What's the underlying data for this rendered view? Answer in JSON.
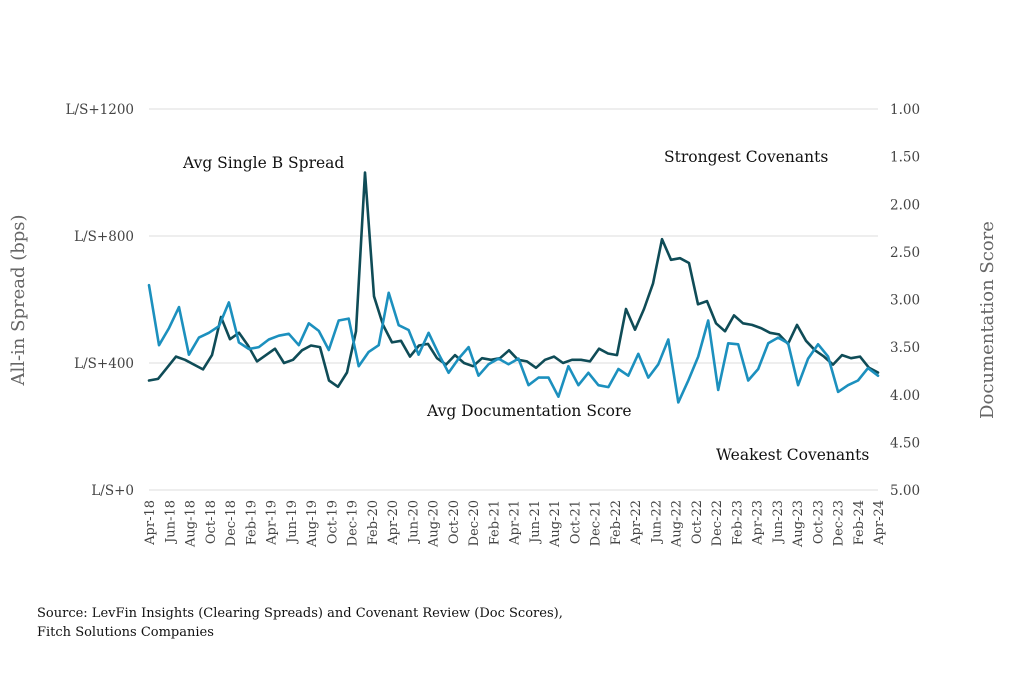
{
  "chart_data": {
    "type": "line",
    "y_left": {
      "label": "All-in Spread (bps)",
      "ticks": [
        "L/S+0",
        "L/S+400",
        "L/S+800",
        "L/S+1200"
      ],
      "range": [
        0,
        1200
      ]
    },
    "y_right": {
      "label": "Documentation Score",
      "ticks": [
        "1.00",
        "1.50",
        "2.00",
        "2.50",
        "3.00",
        "3.50",
        "4.00",
        "4.50",
        "5.00"
      ],
      "range": [
        1.0,
        5.0
      ],
      "inverted": true
    },
    "x_tick_labels": [
      "Apr-18",
      "Jun-18",
      "Aug-18",
      "Oct-18",
      "Dec-18",
      "Feb-19",
      "Apr-19",
      "Jun-19",
      "Aug-19",
      "Oct-19",
      "Dec-19",
      "Feb-20",
      "Apr-20",
      "Jun-20",
      "Aug-20",
      "Oct-20",
      "Dec-20",
      "Feb-21",
      "Apr-21",
      "Jun-21",
      "Aug-21",
      "Oct-21",
      "Dec-21",
      "Feb-22",
      "Apr-22",
      "Jun-22",
      "Aug-22",
      "Oct-22",
      "Dec-22",
      "Feb-23",
      "Apr-23",
      "Jun-23",
      "Aug-23",
      "Oct-23",
      "Dec-23",
      "Feb-24",
      "Apr-24"
    ],
    "x_start": "Apr-18",
    "x_end": "May-24",
    "series": [
      {
        "name": "Avg Single B Spread",
        "axis": "left",
        "color": "#0f4c57",
        "values": [
          345,
          350,
          385,
          420,
          410,
          395,
          380,
          425,
          545,
          475,
          495,
          455,
          405,
          425,
          445,
          400,
          410,
          440,
          455,
          450,
          345,
          325,
          370,
          500,
          1000,
          610,
          520,
          465,
          470,
          420,
          455,
          460,
          415,
          395,
          425,
          400,
          390,
          415,
          410,
          415,
          440,
          410,
          405,
          385,
          410,
          420,
          400,
          410,
          410,
          405,
          445,
          430,
          425,
          570,
          505,
          570,
          650,
          790,
          725,
          730,
          715,
          585,
          595,
          525,
          500,
          550,
          525,
          520,
          510,
          495,
          490,
          460,
          520,
          470,
          440,
          420,
          395,
          425,
          415,
          420,
          385,
          370
        ]
      },
      {
        "name": "Avg Documentation Score",
        "axis": "right",
        "color": "#1c90be",
        "values": [
          2.85,
          3.48,
          3.3,
          3.08,
          3.58,
          3.4,
          3.35,
          3.28,
          3.03,
          3.45,
          3.52,
          3.5,
          3.42,
          3.38,
          3.36,
          3.48,
          3.25,
          3.33,
          3.53,
          3.22,
          3.2,
          3.7,
          3.55,
          3.48,
          2.93,
          3.27,
          3.32,
          3.58,
          3.35,
          3.57,
          3.77,
          3.62,
          3.5,
          3.8,
          3.68,
          3.62,
          3.68,
          3.62,
          3.9,
          3.82,
          3.82,
          4.02,
          3.7,
          3.9,
          3.77,
          3.9,
          3.92,
          3.73,
          3.8,
          3.57,
          3.82,
          3.68,
          3.42,
          4.08,
          3.85,
          3.6,
          3.22,
          3.95,
          3.46,
          3.47,
          3.85,
          3.73,
          3.46,
          3.4,
          3.46,
          3.9,
          3.62,
          3.47,
          3.6,
          3.97,
          3.9,
          3.85,
          3.72,
          3.8
        ]
      }
    ],
    "annotations": [
      "Avg Single B Spread",
      "Strongest Covenants",
      "Avg Documentation Score",
      "Weakest Covenants"
    ],
    "grid": true,
    "legend": "none"
  },
  "source": {
    "line1": "Source: LevFin Insights (Clearing Spreads) and Covenant Review (Doc Scores),",
    "line2": "Fitch Solutions Companies"
  },
  "colors": {
    "spread": "#0f4c57",
    "doc_score": "#1c90be",
    "grid": "#dddddd"
  }
}
